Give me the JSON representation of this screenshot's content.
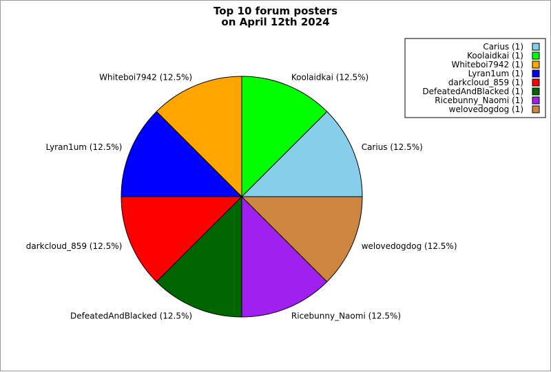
{
  "chart_data": {
    "type": "pie",
    "title_lines": [
      "Top 10 forum posters",
      "on April 12th 2024"
    ],
    "legend_position": "top-right",
    "slices": [
      {
        "label": "Carius",
        "value": 1,
        "percent_label": "Carius (12.5%)",
        "legend_label": "Carius (1)",
        "color": "#87CEEB"
      },
      {
        "label": "Koolaidkai",
        "value": 1,
        "percent_label": "Koolaidkai (12.5%)",
        "legend_label": "Koolaidkai (1)",
        "color": "#00FF00"
      },
      {
        "label": "Whiteboi7942",
        "value": 1,
        "percent_label": "Whiteboi7942 (12.5%)",
        "legend_label": "Whiteboi7942 (1)",
        "color": "#FFA500"
      },
      {
        "label": "Lyran1um",
        "value": 1,
        "percent_label": "Lyran1um (12.5%)",
        "legend_label": "Lyran1um (1)",
        "color": "#0000FF"
      },
      {
        "label": "darkcloud_859",
        "value": 1,
        "percent_label": "darkcloud_859 (12.5%)",
        "legend_label": "darkcloud_859 (1)",
        "color": "#FF0000"
      },
      {
        "label": "DefeatedAndBlacked",
        "value": 1,
        "percent_label": "DefeatedAndBlacked (12.5%)",
        "legend_label": "DefeatedAndBlacked (1)",
        "color": "#006400"
      },
      {
        "label": "Ricebunny_Naomi",
        "value": 1,
        "percent_label": "Ricebunny_Naomi (12.5%)",
        "legend_label": "Ricebunny_Naomi (1)",
        "color": "#A020F0"
      },
      {
        "label": "welovedogdog",
        "value": 1,
        "percent_label": "welovedogdog (12.5%)",
        "legend_label": "welovedogdog (1)",
        "color": "#CD853F"
      }
    ]
  }
}
